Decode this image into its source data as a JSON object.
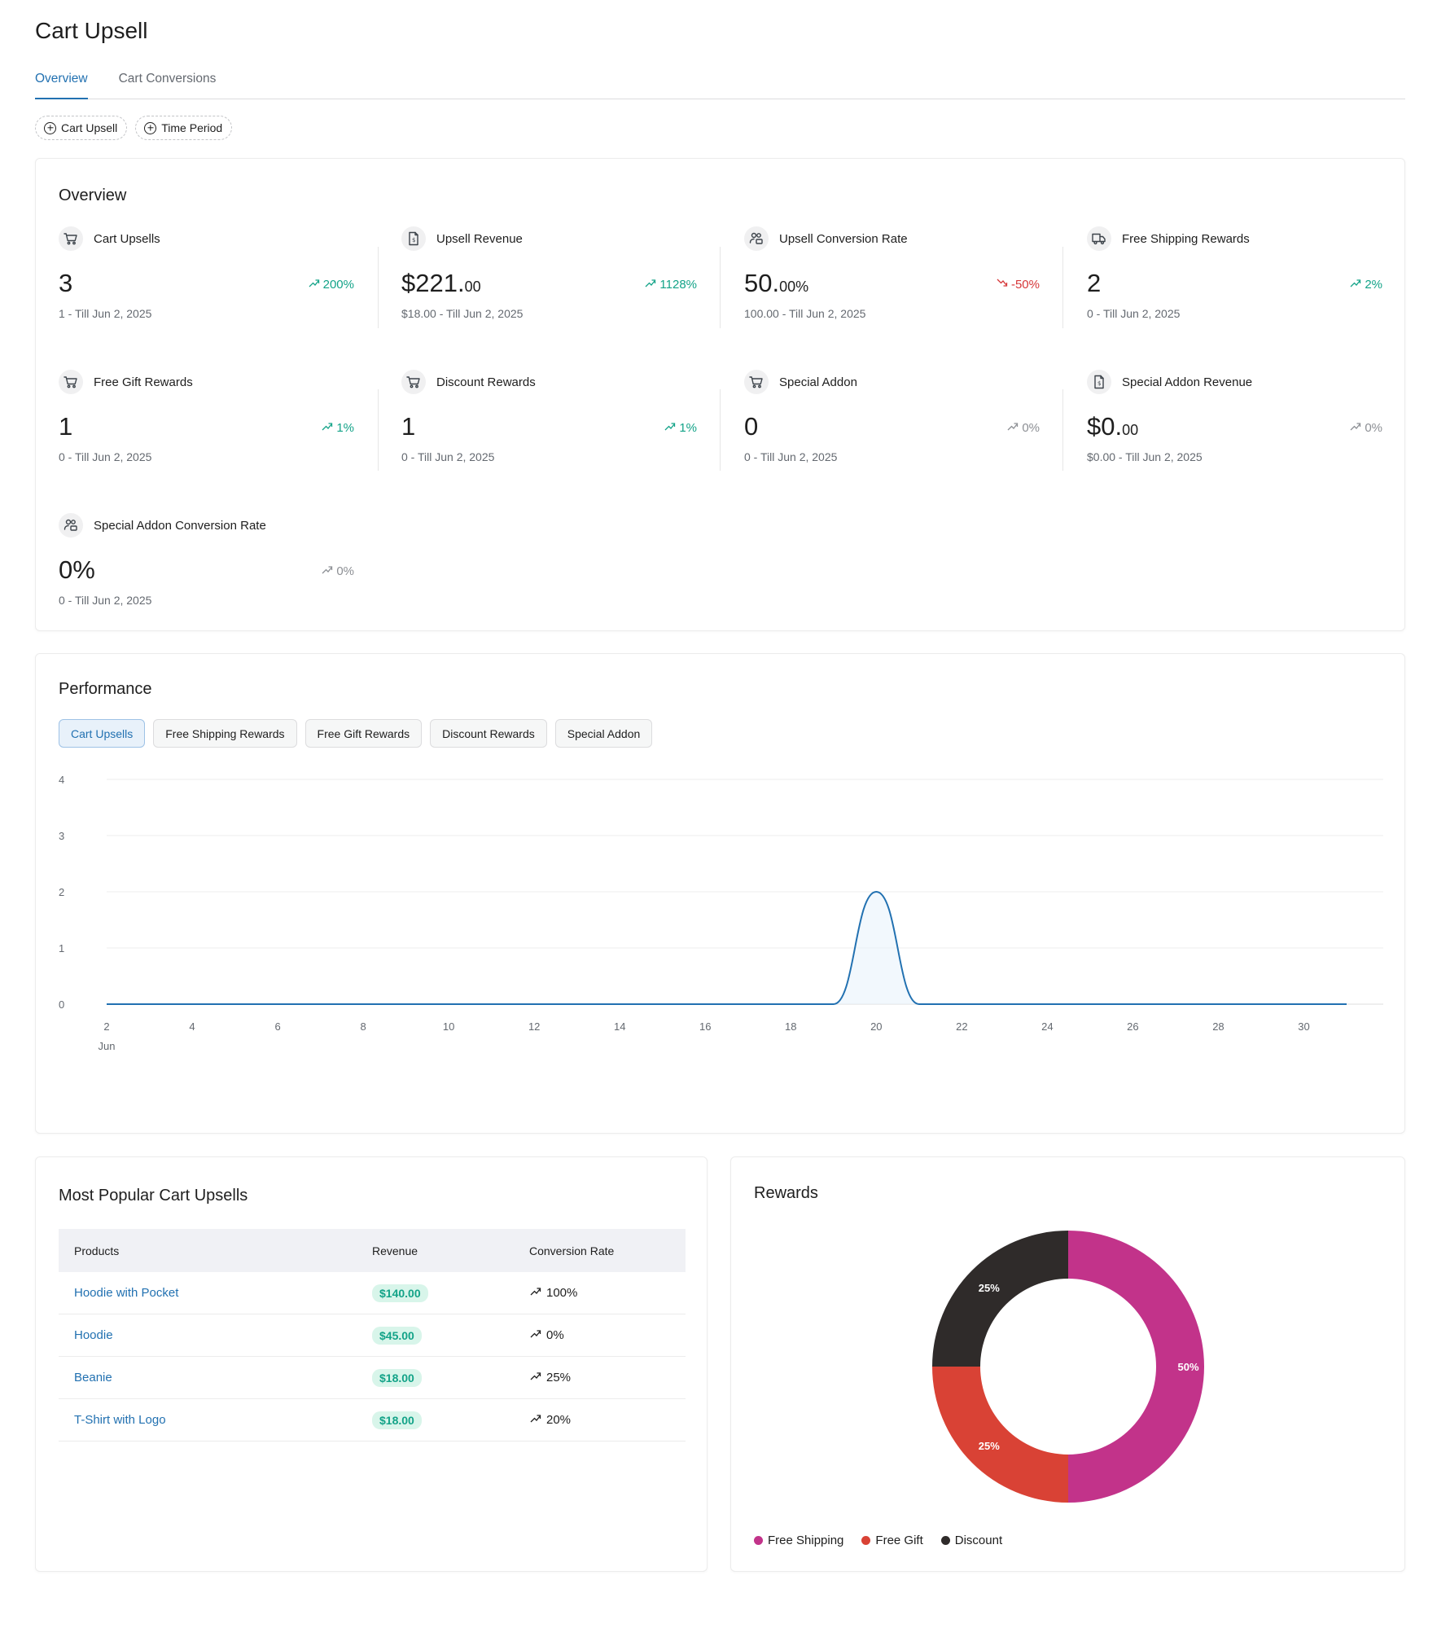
{
  "page": {
    "title": "Cart Upsell"
  },
  "tabs": [
    {
      "label": "Overview",
      "active": true
    },
    {
      "label": "Cart Conversions",
      "active": false
    }
  ],
  "filters": [
    {
      "label": "Cart Upsell"
    },
    {
      "label": "Time Period"
    }
  ],
  "overview": {
    "title": "Overview",
    "metrics": [
      {
        "label": "Cart Upsells",
        "icon": "cart-icon",
        "value": "3",
        "decimals": "",
        "sub": "1 - Till Jun 2, 2025",
        "trend": "200%",
        "trend_dir": "up"
      },
      {
        "label": "Upsell Revenue",
        "icon": "receipt-icon",
        "value": "$221.",
        "decimals": "00",
        "sub": "$18.00 - Till Jun 2, 2025",
        "trend": "1128%",
        "trend_dir": "up"
      },
      {
        "label": "Upsell Conversion Rate",
        "icon": "users-icon",
        "value": "50.",
        "decimals": "00%",
        "sub": "100.00 - Till Jun 2, 2025",
        "trend": "-50%",
        "trend_dir": "down"
      },
      {
        "label": "Free Shipping Rewards",
        "icon": "truck-icon",
        "value": "2",
        "decimals": "",
        "sub": "0 - Till Jun 2, 2025",
        "trend": "2%",
        "trend_dir": "up"
      },
      {
        "label": "Free Gift Rewards",
        "icon": "cart-icon",
        "value": "1",
        "decimals": "",
        "sub": "0 - Till Jun 2, 2025",
        "trend": "1%",
        "trend_dir": "up"
      },
      {
        "label": "Discount Rewards",
        "icon": "cart-icon",
        "value": "1",
        "decimals": "",
        "sub": "0 - Till Jun 2, 2025",
        "trend": "1%",
        "trend_dir": "up"
      },
      {
        "label": "Special Addon",
        "icon": "cart-icon",
        "value": "0",
        "decimals": "",
        "sub": "0 - Till Jun 2, 2025",
        "trend": "0%",
        "trend_dir": "neutral"
      },
      {
        "label": "Special Addon Revenue",
        "icon": "receipt-icon",
        "value": "$0.",
        "decimals": "00",
        "sub": "$0.00 - Till Jun 2, 2025",
        "trend": "0%",
        "trend_dir": "neutral"
      },
      {
        "label": "Special Addon Conversion Rate",
        "icon": "users-icon",
        "value": "0%",
        "decimals": "",
        "sub": "0 - Till Jun 2, 2025",
        "trend": "0%",
        "trend_dir": "neutral"
      }
    ]
  },
  "performance": {
    "title": "Performance",
    "tabs": [
      {
        "label": "Cart Upsells",
        "active": true
      },
      {
        "label": "Free Shipping Rewards",
        "active": false
      },
      {
        "label": "Free Gift Rewards",
        "active": false
      },
      {
        "label": "Discount Rewards",
        "active": false
      },
      {
        "label": "Special Addon",
        "active": false
      }
    ]
  },
  "chart_data": [
    {
      "type": "area",
      "title": "",
      "xlabel": "",
      "ylabel": "",
      "x_month_label": "Jun",
      "x_ticks": [
        2,
        4,
        6,
        8,
        10,
        12,
        14,
        16,
        18,
        20,
        22,
        24,
        26,
        28,
        30
      ],
      "y_ticks": [
        0,
        1,
        2,
        3,
        4
      ],
      "ylim": [
        0,
        4
      ],
      "xlim": [
        2,
        31
      ],
      "grid": true,
      "line_color": "#2271b1",
      "series": [
        {
          "x": [
            2,
            3,
            4,
            5,
            6,
            7,
            8,
            9,
            10,
            11,
            12,
            13,
            14,
            15,
            16,
            17,
            18,
            19,
            20,
            21,
            22,
            23,
            24,
            25,
            26,
            27,
            28,
            29,
            30,
            31
          ],
          "values": [
            0,
            0,
            0,
            0,
            0,
            0,
            0,
            0,
            0,
            0,
            0,
            0,
            0,
            0,
            0,
            0,
            0,
            0,
            2,
            0,
            0,
            0,
            0,
            0,
            0,
            0,
            0,
            0,
            0,
            0
          ]
        }
      ]
    },
    {
      "type": "pie",
      "title": "Rewards",
      "categories": [
        "Free Shipping",
        "Free Gift",
        "Discount"
      ],
      "values": [
        50,
        25,
        25
      ],
      "labels": [
        "50%",
        "25%",
        "25%"
      ],
      "colors": [
        "#c2338a",
        "#d94235",
        "#2f2b2a"
      ],
      "legend": "bottom-left"
    }
  ],
  "popular": {
    "title": "Most Popular Cart Upsells",
    "headers": [
      "Products",
      "Revenue",
      "Conversion Rate"
    ],
    "rows": [
      {
        "product": "Hoodie with Pocket",
        "revenue": "$140.00",
        "rate": "100%"
      },
      {
        "product": "Hoodie",
        "revenue": "$45.00",
        "rate": "0%"
      },
      {
        "product": "Beanie",
        "revenue": "$18.00",
        "rate": "25%"
      },
      {
        "product": "T-Shirt with Logo",
        "revenue": "$18.00",
        "rate": "20%"
      }
    ]
  },
  "rewards": {
    "title": "Rewards"
  }
}
